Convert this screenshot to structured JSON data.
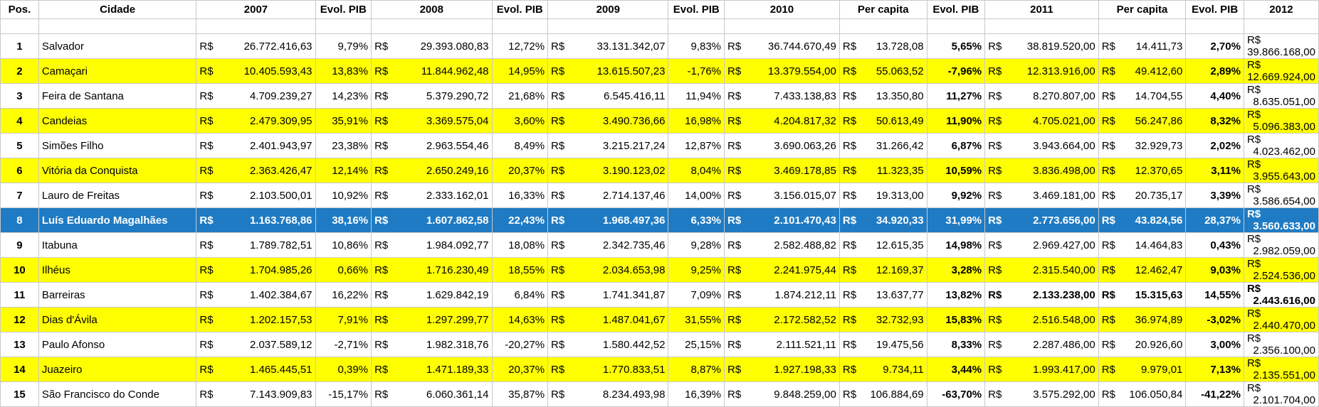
{
  "headers": [
    "Pos.",
    "Cidade",
    "2007",
    "Evol. PIB",
    "2008",
    "Evol. PIB",
    "2009",
    "Evol. PIB",
    "2010",
    "Per capita",
    "Evol. PIB",
    "2011",
    "Per capita",
    "Evol. PIB",
    "2012"
  ],
  "currency": "R$",
  "highlight_colors": {
    "yellow": "#ffff00",
    "selected": "#1f7bc3"
  },
  "rows": [
    {
      "pos": "1",
      "city": "Salvador",
      "c2007": "26.772.416,63",
      "e2007": "9,79%",
      "c2008": "29.393.080,83",
      "e2008": "12,72%",
      "c2009": "33.131.342,07",
      "e2009": "9,83%",
      "c2010": "36.744.670,49",
      "pc2010": "13.728,08",
      "e2010": "5,65%",
      "c2011": "38.819.520,00",
      "pc2011": "14.411,73",
      "e2011": "2,70%",
      "c2012": "39.866.168,00",
      "style": ""
    },
    {
      "pos": "2",
      "city": "Camaçari",
      "c2007": "10.405.593,43",
      "e2007": "13,83%",
      "c2008": "11.844.962,48",
      "e2008": "14,95%",
      "c2009": "13.615.507,23",
      "e2009": "-1,76%",
      "c2010": "13.379.554,00",
      "pc2010": "55.063,52",
      "e2010": "-7,96%",
      "c2011": "12.313.916,00",
      "pc2011": "49.412,60",
      "e2011": "2,89%",
      "c2012": "12.669.924,00",
      "style": "yellow"
    },
    {
      "pos": "3",
      "city": "Feira de Santana",
      "c2007": "4.709.239,27",
      "e2007": "14,23%",
      "c2008": "5.379.290,72",
      "e2008": "21,68%",
      "c2009": "6.545.416,11",
      "e2009": "11,94%",
      "c2010": "7.433.138,83",
      "pc2010": "13.350,80",
      "e2010": "11,27%",
      "c2011": "8.270.807,00",
      "pc2011": "14.704,55",
      "e2011": "4,40%",
      "c2012": "8.635.051,00",
      "style": ""
    },
    {
      "pos": "4",
      "city": "Candeias",
      "c2007": "2.479.309,95",
      "e2007": "35,91%",
      "c2008": "3.369.575,04",
      "e2008": "3,60%",
      "c2009": "3.490.736,66",
      "e2009": "16,98%",
      "c2010": "4.204.817,32",
      "pc2010": "50.613,49",
      "e2010": "11,90%",
      "c2011": "4.705.021,00",
      "pc2011": "56.247,86",
      "e2011": "8,32%",
      "c2012": "5.096.383,00",
      "style": "yellow"
    },
    {
      "pos": "5",
      "city": "Simões Filho",
      "c2007": "2.401.943,97",
      "e2007": "23,38%",
      "c2008": "2.963.554,46",
      "e2008": "8,49%",
      "c2009": "3.215.217,24",
      "e2009": "12,87%",
      "c2010": "3.690.063,26",
      "pc2010": "31.266,42",
      "e2010": "6,87%",
      "c2011": "3.943.664,00",
      "pc2011": "32.929,73",
      "e2011": "2,02%",
      "c2012": "4.023.462,00",
      "style": ""
    },
    {
      "pos": "6",
      "city": "Vitória da Conquista",
      "c2007": "2.363.426,47",
      "e2007": "12,14%",
      "c2008": "2.650.249,16",
      "e2008": "20,37%",
      "c2009": "3.190.123,02",
      "e2009": "8,04%",
      "c2010": "3.469.178,85",
      "pc2010": "11.323,35",
      "e2010": "10,59%",
      "c2011": "3.836.498,00",
      "pc2011": "12.370,65",
      "e2011": "3,11%",
      "c2012": "3.955.643,00",
      "style": "yellow"
    },
    {
      "pos": "7",
      "city": "Lauro de Freitas",
      "c2007": "2.103.500,01",
      "e2007": "10,92%",
      "c2008": "2.333.162,01",
      "e2008": "16,33%",
      "c2009": "2.714.137,46",
      "e2009": "14,00%",
      "c2010": "3.156.015,07",
      "pc2010": "19.313,00",
      "e2010": "9,92%",
      "c2011": "3.469.181,00",
      "pc2011": "20.735,17",
      "e2011": "3,39%",
      "c2012": "3.586.654,00",
      "style": ""
    },
    {
      "pos": "8",
      "city": "Luís Eduardo Magalhães",
      "c2007": "1.163.768,86",
      "e2007": "38,16%",
      "c2008": "1.607.862,58",
      "e2008": "22,43%",
      "c2009": "1.968.497,36",
      "e2009": "6,33%",
      "c2010": "2.101.470,43",
      "pc2010": "34.920,33",
      "e2010": "31,99%",
      "c2011": "2.773.656,00",
      "pc2011": "43.824,56",
      "e2011": "28,37%",
      "c2012": "3.560.633,00",
      "style": "blue"
    },
    {
      "pos": "9",
      "city": "Itabuna",
      "c2007": "1.789.782,51",
      "e2007": "10,86%",
      "c2008": "1.984.092,77",
      "e2008": "18,08%",
      "c2009": "2.342.735,46",
      "e2009": "9,28%",
      "c2010": "2.582.488,82",
      "pc2010": "12.615,35",
      "e2010": "14,98%",
      "c2011": "2.969.427,00",
      "pc2011": "14.464,83",
      "e2011": "0,43%",
      "c2012": "2.982.059,00",
      "style": ""
    },
    {
      "pos": "10",
      "city": "Ilhéus",
      "c2007": "1.704.985,26",
      "e2007": "0,66%",
      "c2008": "1.716.230,49",
      "e2008": "18,55%",
      "c2009": "2.034.653,98",
      "e2009": "9,25%",
      "c2010": "2.241.975,44",
      "pc2010": "12.169,37",
      "e2010": "3,28%",
      "c2011": "2.315.540,00",
      "pc2011": "12.462,47",
      "e2011": "9,03%",
      "c2012": "2.524.536,00",
      "style": "yellow"
    },
    {
      "pos": "11",
      "city": "Barreiras",
      "c2007": "1.402.384,67",
      "e2007": "16,22%",
      "c2008": "1.629.842,19",
      "e2008": "6,84%",
      "c2009": "1.741.341,87",
      "e2009": "7,09%",
      "c2010": "1.874.212,11",
      "pc2010": "13.637,77",
      "e2010": "13,82%",
      "c2011": "2.133.238,00",
      "pc2011": "15.315,63",
      "e2011": "14,55%",
      "c2012": "2.443.616,00",
      "style": "",
      "bold2011": true
    },
    {
      "pos": "12",
      "city": "Dias d'Ávila",
      "c2007": "1.202.157,53",
      "e2007": "7,91%",
      "c2008": "1.297.299,77",
      "e2008": "14,63%",
      "c2009": "1.487.041,67",
      "e2009": "31,55%",
      "c2010": "2.172.582,52",
      "pc2010": "32.732,93",
      "e2010": "15,83%",
      "c2011": "2.516.548,00",
      "pc2011": "36.974,89",
      "e2011": "-3,02%",
      "c2012": "2.440.470,00",
      "style": "yellow"
    },
    {
      "pos": "13",
      "city": "Paulo Afonso",
      "c2007": "2.037.589,12",
      "e2007": "-2,71%",
      "c2008": "1.982.318,76",
      "e2008": "-20,27%",
      "c2009": "1.580.442,52",
      "e2009": "25,15%",
      "c2010": "2.111.521,11",
      "pc2010": "19.475,56",
      "e2010": "8,33%",
      "c2011": "2.287.486,00",
      "pc2011": "20.926,60",
      "e2011": "3,00%",
      "c2012": "2.356.100,00",
      "style": ""
    },
    {
      "pos": "14",
      "city": "Juazeiro",
      "c2007": "1.465.445,51",
      "e2007": "0,39%",
      "c2008": "1.471.189,33",
      "e2008": "20,37%",
      "c2009": "1.770.833,51",
      "e2009": "8,87%",
      "c2010": "1.927.198,33",
      "pc2010": "9.734,11",
      "e2010": "3,44%",
      "c2011": "1.993.417,00",
      "pc2011": "9.979,01",
      "e2011": "7,13%",
      "c2012": "2.135.551,00",
      "style": "yellow"
    },
    {
      "pos": "15",
      "city": "São Francisco do Conde",
      "c2007": "7.143.909,83",
      "e2007": "-15,17%",
      "c2008": "6.060.361,14",
      "e2008": "35,87%",
      "c2009": "8.234.493,98",
      "e2009": "16,39%",
      "c2010": "9.848.259,00",
      "pc2010": "106.884,69",
      "e2010": "-63,70%",
      "c2011": "3.575.292,00",
      "pc2011": "106.050,84",
      "e2011": "-41,22%",
      "c2012": "2.101.704,00",
      "style": ""
    }
  ]
}
